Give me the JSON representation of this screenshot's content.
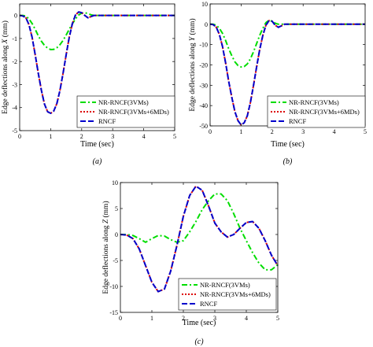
{
  "chart_data": [
    {
      "type": "line",
      "panel_label": "(a)",
      "xlabel": "Time (sec)",
      "ylabel": "Edge deflections along X (mm)",
      "ylabel_prefix": "Edge deflections along ",
      "ylabel_var": "X",
      "ylabel_suffix": " (mm)",
      "xlim": [
        0,
        5
      ],
      "ylim": [
        -5,
        0.5
      ],
      "xticks": [
        0,
        1,
        2,
        3,
        4,
        5
      ],
      "yticks": [
        0,
        -1,
        -2,
        -3,
        -4,
        -5
      ],
      "grid": false,
      "legend_position": "bottom-right",
      "series": [
        {
          "name": "NR-RNCF(3VMs)",
          "color": "#00dd00",
          "dash": "dashdot",
          "x": [
            0,
            0.1,
            0.2,
            0.3,
            0.4,
            0.5,
            0.6,
            0.7,
            0.8,
            0.9,
            1.0,
            1.1,
            1.2,
            1.3,
            1.4,
            1.5,
            1.6,
            1.7,
            1.8,
            1.9,
            2.0,
            2.1,
            2.2,
            2.3,
            2.4,
            2.5,
            2.6,
            2.7,
            3.0,
            3.5,
            4.0,
            4.5,
            5.0
          ],
          "y": [
            0,
            0,
            -0.03,
            -0.15,
            -0.35,
            -0.6,
            -0.88,
            -1.12,
            -1.3,
            -1.42,
            -1.48,
            -1.47,
            -1.4,
            -1.27,
            -1.08,
            -0.85,
            -0.6,
            -0.36,
            -0.15,
            0.02,
            0.1,
            0.12,
            0.08,
            0.03,
            0,
            0,
            0,
            0,
            0,
            0,
            0,
            0,
            0
          ]
        },
        {
          "name": "NR-RNCF(3VMs+6MDs)",
          "color": "#dd0000",
          "dash": "dotted",
          "x": [
            0,
            0.1,
            0.2,
            0.3,
            0.4,
            0.5,
            0.6,
            0.7,
            0.8,
            0.9,
            1.0,
            1.1,
            1.2,
            1.3,
            1.4,
            1.5,
            1.6,
            1.7,
            1.8,
            1.9,
            2.0,
            2.1,
            2.2,
            2.3,
            2.4,
            2.5,
            2.6,
            2.7,
            3.0,
            3.5,
            4.0,
            4.5,
            5.0
          ],
          "y": [
            0,
            -0.02,
            -0.1,
            -0.4,
            -0.95,
            -1.7,
            -2.5,
            -3.25,
            -3.85,
            -4.18,
            -4.25,
            -4.15,
            -3.82,
            -3.25,
            -2.5,
            -1.7,
            -0.95,
            -0.35,
            0.02,
            0.15,
            0.12,
            0.0,
            -0.1,
            -0.05,
            0,
            0,
            0,
            0,
            0,
            0,
            0,
            0,
            0
          ]
        },
        {
          "name": "RNCF",
          "color": "#0000cc",
          "dash": "dashed",
          "x": [
            0,
            0.1,
            0.2,
            0.3,
            0.4,
            0.5,
            0.6,
            0.7,
            0.8,
            0.9,
            1.0,
            1.1,
            1.2,
            1.3,
            1.4,
            1.5,
            1.6,
            1.7,
            1.8,
            1.9,
            2.0,
            2.1,
            2.2,
            2.3,
            2.4,
            2.5,
            2.6,
            2.7,
            3.0,
            3.5,
            4.0,
            4.5,
            5.0
          ],
          "y": [
            0,
            -0.02,
            -0.1,
            -0.4,
            -0.95,
            -1.7,
            -2.5,
            -3.25,
            -3.85,
            -4.18,
            -4.25,
            -4.15,
            -3.82,
            -3.25,
            -2.5,
            -1.7,
            -0.95,
            -0.35,
            0.02,
            0.15,
            0.12,
            0.0,
            -0.1,
            -0.05,
            0,
            0,
            0,
            0,
            0,
            0,
            0,
            0,
            0
          ]
        }
      ]
    },
    {
      "type": "line",
      "panel_label": "(b)",
      "xlabel": "Time (sec)",
      "ylabel": "Edge deflections along Y (mm)",
      "ylabel_prefix": "Edge deflections along ",
      "ylabel_var": "Y",
      "ylabel_suffix": " (mm)",
      "xlim": [
        0,
        5
      ],
      "ylim": [
        -50,
        10
      ],
      "xticks": [
        0,
        1,
        2,
        3,
        4,
        5
      ],
      "yticks": [
        10,
        0,
        -10,
        -20,
        -30,
        -40,
        -50
      ],
      "grid": false,
      "legend_position": "bottom-right",
      "series": [
        {
          "name": "NR-RNCF(3VMs)",
          "color": "#00dd00",
          "dash": "dashdot",
          "x": [
            0,
            0.1,
            0.2,
            0.3,
            0.4,
            0.5,
            0.6,
            0.7,
            0.8,
            0.9,
            1.0,
            1.1,
            1.2,
            1.3,
            1.4,
            1.5,
            1.6,
            1.7,
            1.8,
            1.9,
            2.0,
            2.1,
            2.2,
            2.3,
            2.4,
            2.5,
            2.6,
            2.7,
            3.0,
            3.5,
            4.0,
            4.5,
            5.0
          ],
          "y": [
            0,
            0,
            -0.5,
            -2,
            -4.5,
            -8,
            -12,
            -15.5,
            -18.5,
            -20.3,
            -21,
            -20.8,
            -19.5,
            -17,
            -13.5,
            -9.5,
            -5.5,
            -2,
            0.8,
            2,
            1.5,
            0.5,
            0,
            0,
            0,
            0,
            0,
            0,
            0,
            0,
            0,
            0,
            0
          ]
        },
        {
          "name": "NR-RNCF(3VMs+6MDs)",
          "color": "#dd0000",
          "dash": "dotted",
          "x": [
            0,
            0.1,
            0.2,
            0.3,
            0.4,
            0.5,
            0.6,
            0.7,
            0.8,
            0.9,
            1.0,
            1.1,
            1.2,
            1.3,
            1.4,
            1.5,
            1.6,
            1.7,
            1.8,
            1.9,
            2.0,
            2.1,
            2.2,
            2.3,
            2.4,
            2.5,
            2.6,
            2.7,
            3.0,
            3.5,
            4.0,
            4.5,
            5.0
          ],
          "y": [
            0,
            -0.2,
            -1.5,
            -5,
            -11,
            -19,
            -28,
            -36,
            -43,
            -47.5,
            -49.5,
            -48.5,
            -45,
            -38.5,
            -30,
            -21,
            -12.5,
            -5.5,
            -0.5,
            1.8,
            1.5,
            -0.5,
            -1.5,
            -0.8,
            0,
            0,
            0,
            0,
            0,
            0,
            0,
            0,
            0
          ]
        },
        {
          "name": "RNCF",
          "color": "#0000cc",
          "dash": "dashed",
          "x": [
            0,
            0.1,
            0.2,
            0.3,
            0.4,
            0.5,
            0.6,
            0.7,
            0.8,
            0.9,
            1.0,
            1.1,
            1.2,
            1.3,
            1.4,
            1.5,
            1.6,
            1.7,
            1.8,
            1.9,
            2.0,
            2.1,
            2.2,
            2.3,
            2.4,
            2.5,
            2.6,
            2.7,
            3.0,
            3.5,
            4.0,
            4.5,
            5.0
          ],
          "y": [
            0,
            -0.2,
            -1.5,
            -5,
            -11,
            -19,
            -28,
            -36,
            -43,
            -47.5,
            -49.5,
            -48.5,
            -45,
            -38.5,
            -30,
            -21,
            -12.5,
            -5.5,
            -0.5,
            1.8,
            1.5,
            -0.5,
            -1.5,
            -0.8,
            0,
            0,
            0,
            0,
            0,
            0,
            0,
            0,
            0
          ]
        }
      ]
    },
    {
      "type": "line",
      "panel_label": "(c)",
      "xlabel": "Time (sec)",
      "ylabel": "Edge deflections along Z (mm)",
      "ylabel_prefix": "Edge deflections along ",
      "ylabel_var": "Z",
      "ylabel_suffix": " (mm)",
      "xlim": [
        0,
        5
      ],
      "ylim": [
        -15,
        10
      ],
      "xticks": [
        0,
        1,
        2,
        3,
        4,
        5
      ],
      "yticks": [
        10,
        5,
        0,
        -5,
        -10,
        -15
      ],
      "grid": false,
      "legend_position": "bottom-right",
      "series": [
        {
          "name": "NR-RNCF(3VMs)",
          "color": "#00dd00",
          "dash": "dashdot",
          "x": [
            0,
            0.2,
            0.4,
            0.6,
            0.8,
            1.0,
            1.2,
            1.4,
            1.6,
            1.8,
            2.0,
            2.2,
            2.4,
            2.6,
            2.8,
            3.0,
            3.2,
            3.4,
            3.6,
            3.8,
            4.0,
            4.2,
            4.4,
            4.6,
            4.8,
            5.0
          ],
          "y": [
            0,
            0,
            -0.2,
            -0.8,
            -1.5,
            -0.8,
            -0.2,
            -0.3,
            -1.0,
            -1.5,
            -1.2,
            0.5,
            2.5,
            4.8,
            6.5,
            7.8,
            7.8,
            6.5,
            4.0,
            1.2,
            -1.2,
            -3.5,
            -5.5,
            -6.8,
            -6.8,
            -5.8
          ]
        },
        {
          "name": "NR-RNCF(3VMs+6MDs)",
          "color": "#dd0000",
          "dash": "dotted",
          "x": [
            0,
            0.2,
            0.4,
            0.6,
            0.8,
            1.0,
            1.2,
            1.4,
            1.6,
            1.8,
            2.0,
            2.2,
            2.4,
            2.6,
            2.8,
            3.0,
            3.2,
            3.4,
            3.6,
            3.8,
            4.0,
            4.2,
            4.4,
            4.6,
            4.8,
            5.0
          ],
          "y": [
            0,
            -0.1,
            -0.8,
            -2.8,
            -6,
            -9.2,
            -11,
            -10.5,
            -7,
            -2,
            3.5,
            7.5,
            9.3,
            8.5,
            5.5,
            2.2,
            0.5,
            -0.5,
            0,
            1.2,
            2.3,
            2.5,
            1.2,
            -1.2,
            -4.0,
            -6
          ]
        },
        {
          "name": "RNCF",
          "color": "#0000cc",
          "dash": "dashed",
          "x": [
            0,
            0.2,
            0.4,
            0.6,
            0.8,
            1.0,
            1.2,
            1.4,
            1.6,
            1.8,
            2.0,
            2.2,
            2.4,
            2.6,
            2.8,
            3.0,
            3.2,
            3.4,
            3.6,
            3.8,
            4.0,
            4.2,
            4.4,
            4.6,
            4.8,
            5.0
          ],
          "y": [
            0,
            -0.1,
            -0.8,
            -2.8,
            -6,
            -9.2,
            -11,
            -10.5,
            -7,
            -2,
            3.5,
            7.5,
            9.3,
            8.5,
            5.5,
            2.2,
            0.5,
            -0.5,
            0,
            1.2,
            2.3,
            2.5,
            1.2,
            -1.2,
            -4.0,
            -6
          ]
        }
      ]
    }
  ]
}
